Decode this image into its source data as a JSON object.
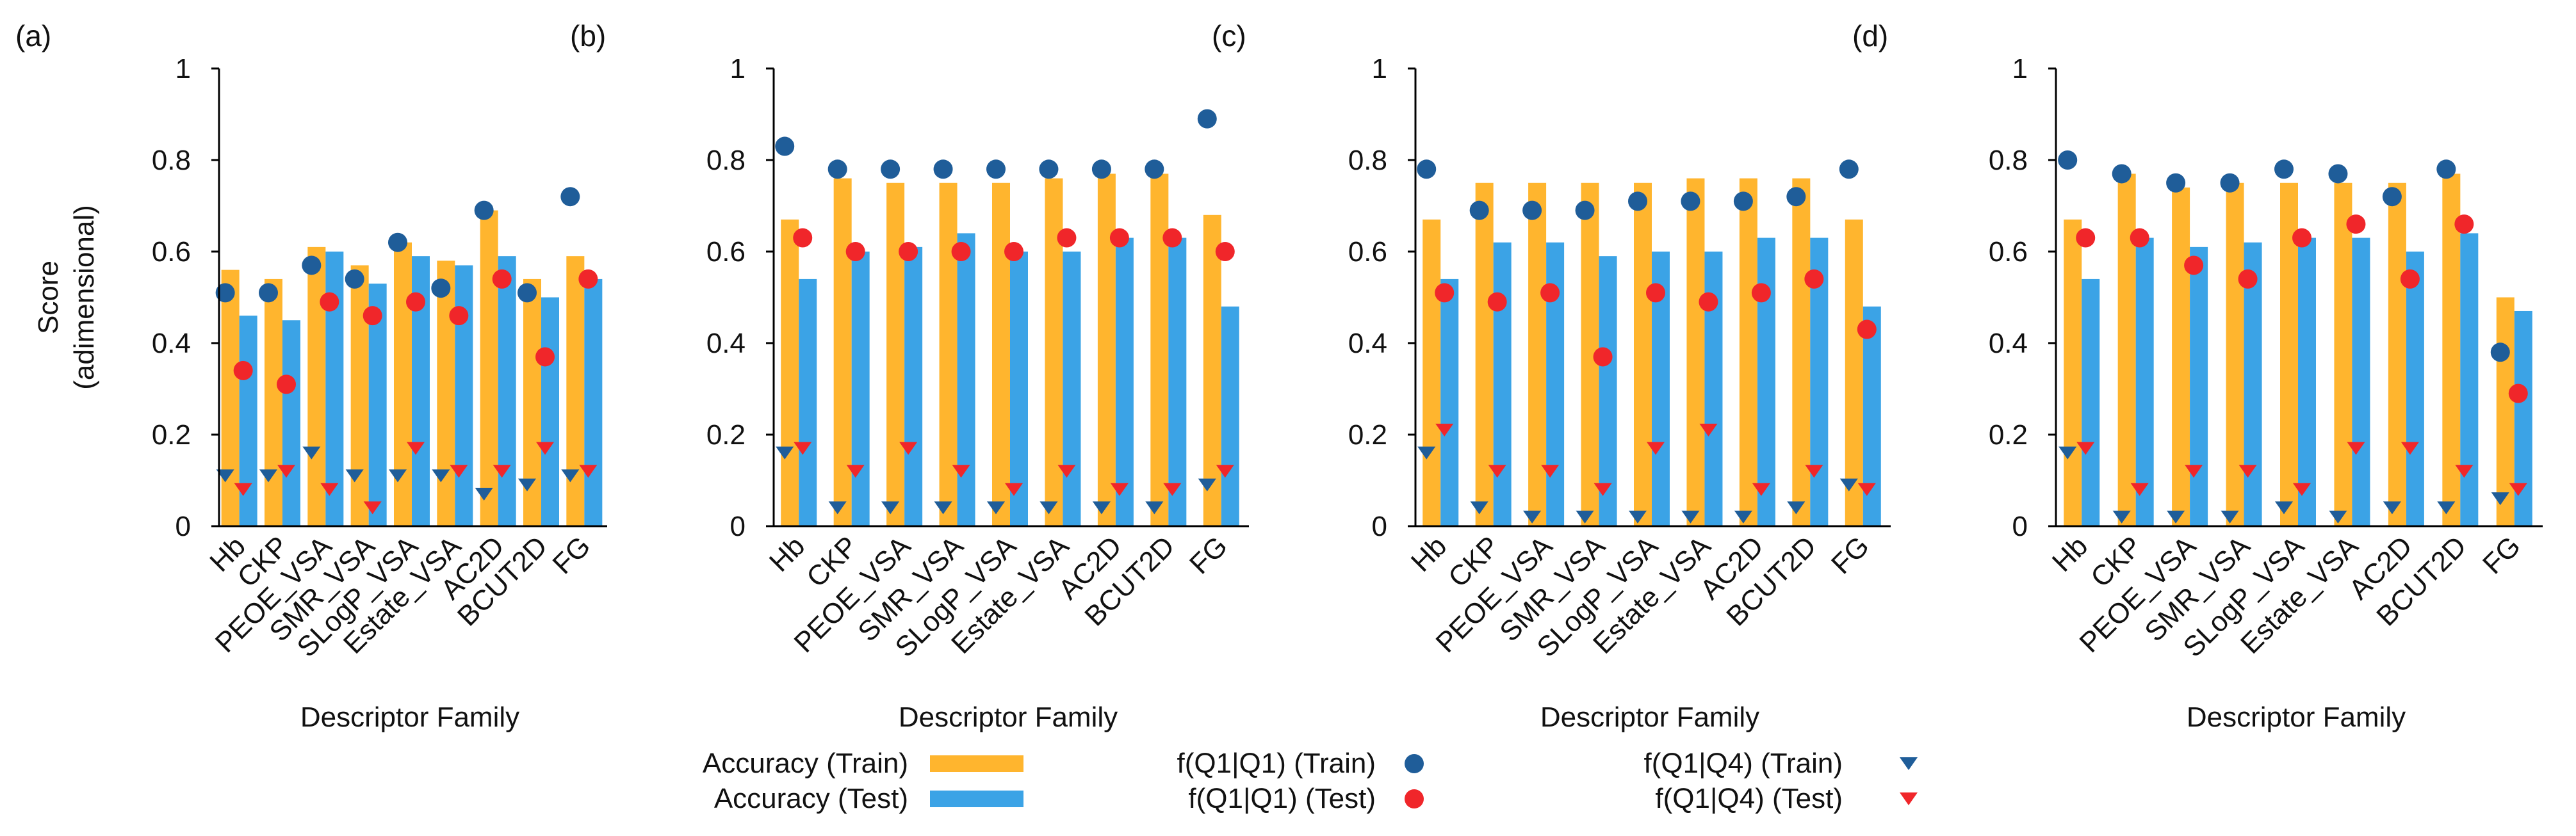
{
  "colors": {
    "acc_train": "#FFB52E",
    "acc_test": "#3BA3E6",
    "f11_train": "#1F5D99",
    "f11_test": "#F0262A",
    "f14_train": "#1F5D99",
    "f14_test": "#F0262A",
    "axis": "#000000"
  },
  "legend": {
    "acc_train": "Accuracy (Train)",
    "acc_test": "Accuracy (Test)",
    "f11_train": "f(Q1|Q1) (Train)",
    "f11_test": "f(Q1|Q1) (Test)",
    "f14_train": "f(Q1|Q4) (Train)",
    "f14_test": "f(Q1|Q4) (Test)"
  },
  "chart_data": [
    {
      "panel": "(a)",
      "type": "bar",
      "title": "",
      "xlabel": "Descriptor Family",
      "ylabel": "Score\n(adimensional)",
      "ylim": [
        0,
        1
      ],
      "yticks": [
        "0",
        "0.2",
        "0.4",
        "0.6",
        "0.8",
        "1"
      ],
      "categories": [
        "Hb",
        "CKP",
        "PEOE_VSA",
        "SMR_VSA",
        "SLogP_VSA",
        "Estate_VSA",
        "AC2D",
        "BCUT2D",
        "FG"
      ],
      "series": [
        {
          "name": "Accuracy (Train)",
          "kind": "bar",
          "values": [
            0.56,
            0.54,
            0.61,
            0.57,
            0.62,
            0.58,
            0.69,
            0.54,
            0.59
          ]
        },
        {
          "name": "Accuracy (Test)",
          "kind": "bar",
          "values": [
            0.46,
            0.45,
            0.6,
            0.53,
            0.59,
            0.57,
            0.59,
            0.5,
            0.54
          ]
        },
        {
          "name": "f(Q1|Q1) (Train)",
          "kind": "circle",
          "values": [
            0.51,
            0.51,
            0.57,
            0.54,
            0.62,
            0.52,
            0.69,
            0.51,
            0.72
          ]
        },
        {
          "name": "f(Q1|Q1) (Test)",
          "kind": "circle",
          "values": [
            0.34,
            0.31,
            0.49,
            0.46,
            0.49,
            0.46,
            0.54,
            0.37,
            0.54
          ]
        },
        {
          "name": "f(Q1|Q4) (Train)",
          "kind": "triangle",
          "values": [
            0.11,
            0.11,
            0.16,
            0.11,
            0.11,
            0.11,
            0.07,
            0.09,
            0.11
          ]
        },
        {
          "name": "f(Q1|Q4) (Test)",
          "kind": "triangle",
          "values": [
            0.08,
            0.12,
            0.08,
            0.04,
            0.17,
            0.12,
            0.12,
            0.17,
            0.12
          ]
        }
      ]
    },
    {
      "panel": "(b)",
      "type": "bar",
      "title": "",
      "xlabel": "Descriptor Family",
      "ylabel": "",
      "ylim": [
        0,
        1
      ],
      "yticks": [
        "0",
        "0.2",
        "0.4",
        "0.6",
        "0.8",
        "1"
      ],
      "categories": [
        "Hb",
        "CKP",
        "PEOE_VSA",
        "SMR_VSA",
        "SLogP_VSA",
        "Estate_VSA",
        "AC2D",
        "BCUT2D",
        "FG"
      ],
      "series": [
        {
          "name": "Accuracy (Train)",
          "kind": "bar",
          "values": [
            0.67,
            0.76,
            0.75,
            0.75,
            0.75,
            0.76,
            0.77,
            0.77,
            0.68
          ]
        },
        {
          "name": "Accuracy (Test)",
          "kind": "bar",
          "values": [
            0.54,
            0.6,
            0.61,
            0.64,
            0.6,
            0.6,
            0.63,
            0.63,
            0.48
          ]
        },
        {
          "name": "f(Q1|Q1) (Train)",
          "kind": "circle",
          "values": [
            0.83,
            0.78,
            0.78,
            0.78,
            0.78,
            0.78,
            0.78,
            0.78,
            0.89
          ]
        },
        {
          "name": "f(Q1|Q1) (Test)",
          "kind": "circle",
          "values": [
            0.63,
            0.6,
            0.6,
            0.6,
            0.6,
            0.63,
            0.63,
            0.63,
            0.6
          ]
        },
        {
          "name": "f(Q1|Q4) (Train)",
          "kind": "triangle",
          "values": [
            0.16,
            0.04,
            0.04,
            0.04,
            0.04,
            0.04,
            0.04,
            0.04,
            0.09
          ]
        },
        {
          "name": "f(Q1|Q4) (Test)",
          "kind": "triangle",
          "values": [
            0.17,
            0.12,
            0.17,
            0.12,
            0.08,
            0.12,
            0.08,
            0.08,
            0.12
          ]
        }
      ]
    },
    {
      "panel": "(c)",
      "type": "bar",
      "title": "",
      "xlabel": "Descriptor Family",
      "ylabel": "",
      "ylim": [
        0,
        1
      ],
      "yticks": [
        "0",
        "0.2",
        "0.4",
        "0.6",
        "0.8",
        "1"
      ],
      "categories": [
        "Hb",
        "CKP",
        "PEOE_VSA",
        "SMR_VSA",
        "SLogP_VSA",
        "Estate_VSA",
        "AC2D",
        "BCUT2D",
        "FG"
      ],
      "series": [
        {
          "name": "Accuracy (Train)",
          "kind": "bar",
          "values": [
            0.67,
            0.75,
            0.75,
            0.75,
            0.75,
            0.76,
            0.76,
            0.76,
            0.67
          ]
        },
        {
          "name": "Accuracy (Test)",
          "kind": "bar",
          "values": [
            0.54,
            0.62,
            0.62,
            0.59,
            0.6,
            0.6,
            0.63,
            0.63,
            0.48
          ]
        },
        {
          "name": "f(Q1|Q1) (Train)",
          "kind": "circle",
          "values": [
            0.78,
            0.69,
            0.69,
            0.69,
            0.71,
            0.71,
            0.71,
            0.72,
            0.78
          ]
        },
        {
          "name": "f(Q1|Q1) (Test)",
          "kind": "circle",
          "values": [
            0.51,
            0.49,
            0.51,
            0.37,
            0.51,
            0.49,
            0.51,
            0.54,
            0.43
          ]
        },
        {
          "name": "f(Q1|Q4) (Train)",
          "kind": "triangle",
          "values": [
            0.16,
            0.04,
            0.02,
            0.02,
            0.02,
            0.02,
            0.02,
            0.04,
            0.09
          ]
        },
        {
          "name": "f(Q1|Q4) (Test)",
          "kind": "triangle",
          "values": [
            0.21,
            0.12,
            0.12,
            0.08,
            0.17,
            0.21,
            0.08,
            0.12,
            0.08
          ]
        }
      ]
    },
    {
      "panel": "(d)",
      "type": "bar",
      "title": "",
      "xlabel": "Descriptor Family",
      "ylabel": "",
      "ylim": [
        0,
        1
      ],
      "yticks": [
        "0",
        "0.2",
        "0.4",
        "0.6",
        "0.8",
        "1"
      ],
      "categories": [
        "Hb",
        "CKP",
        "PEOE_VSA",
        "SMR_VSA",
        "SLogP_VSA",
        "Estate_VSA",
        "AC2D",
        "BCUT2D",
        "FG"
      ],
      "series": [
        {
          "name": "Accuracy (Train)",
          "kind": "bar",
          "values": [
            0.67,
            0.77,
            0.74,
            0.75,
            0.75,
            0.75,
            0.75,
            0.77,
            0.5
          ]
        },
        {
          "name": "Accuracy (Test)",
          "kind": "bar",
          "values": [
            0.54,
            0.63,
            0.61,
            0.62,
            0.63,
            0.63,
            0.6,
            0.64,
            0.47
          ]
        },
        {
          "name": "f(Q1|Q1) (Train)",
          "kind": "circle",
          "values": [
            0.8,
            0.77,
            0.75,
            0.75,
            0.78,
            0.77,
            0.72,
            0.78,
            0.38
          ]
        },
        {
          "name": "f(Q1|Q1) (Test)",
          "kind": "circle",
          "values": [
            0.63,
            0.63,
            0.57,
            0.54,
            0.63,
            0.66,
            0.54,
            0.66,
            0.29
          ]
        },
        {
          "name": "f(Q1|Q4) (Train)",
          "kind": "triangle",
          "values": [
            0.16,
            0.02,
            0.02,
            0.02,
            0.04,
            0.02,
            0.04,
            0.04,
            0.06
          ]
        },
        {
          "name": "f(Q1|Q4) (Test)",
          "kind": "triangle",
          "values": [
            0.17,
            0.08,
            0.12,
            0.12,
            0.08,
            0.17,
            0.17,
            0.12,
            0.08
          ]
        }
      ]
    }
  ]
}
